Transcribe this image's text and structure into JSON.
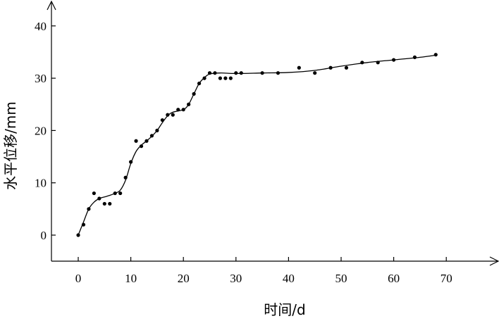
{
  "chart_data": {
    "type": "scatter",
    "title": "",
    "xlabel": "时间/d",
    "ylabel": "水平位移/mm",
    "xlim": [
      -5,
      78
    ],
    "ylim": [
      -5,
      44
    ],
    "grid": false,
    "legend": "none",
    "x_ticks": [
      0,
      10,
      20,
      30,
      40,
      50,
      60,
      70
    ],
    "y_ticks": [
      0,
      10,
      20,
      30,
      40
    ],
    "series": [
      {
        "mode": "markers",
        "x": [
          0,
          1,
          2,
          3,
          4,
          5,
          6,
          7,
          8,
          9,
          10,
          11,
          12,
          13,
          14,
          15,
          16,
          17,
          18,
          19,
          20,
          21,
          22,
          23,
          24,
          25,
          26,
          27,
          28,
          29,
          30,
          31,
          35,
          38,
          42,
          45,
          48,
          51,
          54,
          57,
          60,
          64,
          68
        ],
        "y": [
          0,
          2,
          5,
          8,
          7,
          6,
          6,
          8,
          8,
          11,
          14,
          18,
          17,
          18,
          19,
          20,
          22,
          23,
          23,
          24,
          24,
          25,
          27,
          29,
          30,
          31,
          31,
          30,
          30,
          30,
          31,
          31,
          31,
          31,
          32,
          31,
          32,
          32,
          33,
          33,
          33.5,
          34,
          34.5
        ]
      },
      {
        "mode": "line",
        "x": [
          0,
          1,
          2,
          3,
          4,
          5,
          6,
          7,
          8,
          9,
          10,
          11,
          12,
          13,
          14,
          15,
          16,
          17,
          18,
          20,
          21,
          22,
          23,
          24,
          25,
          27,
          30,
          35,
          40,
          45,
          50,
          55,
          60,
          65,
          68
        ],
        "y": [
          0,
          2.5,
          5,
          6.3,
          7,
          7.3,
          7.6,
          8,
          8.6,
          10.5,
          13.7,
          16,
          17.2,
          18,
          18.9,
          20,
          21.5,
          22.8,
          23.5,
          24,
          25,
          27,
          29,
          30.1,
          30.8,
          31,
          30.9,
          31,
          31.1,
          31.5,
          32.3,
          33,
          33.5,
          34,
          34.4
        ]
      }
    ]
  }
}
